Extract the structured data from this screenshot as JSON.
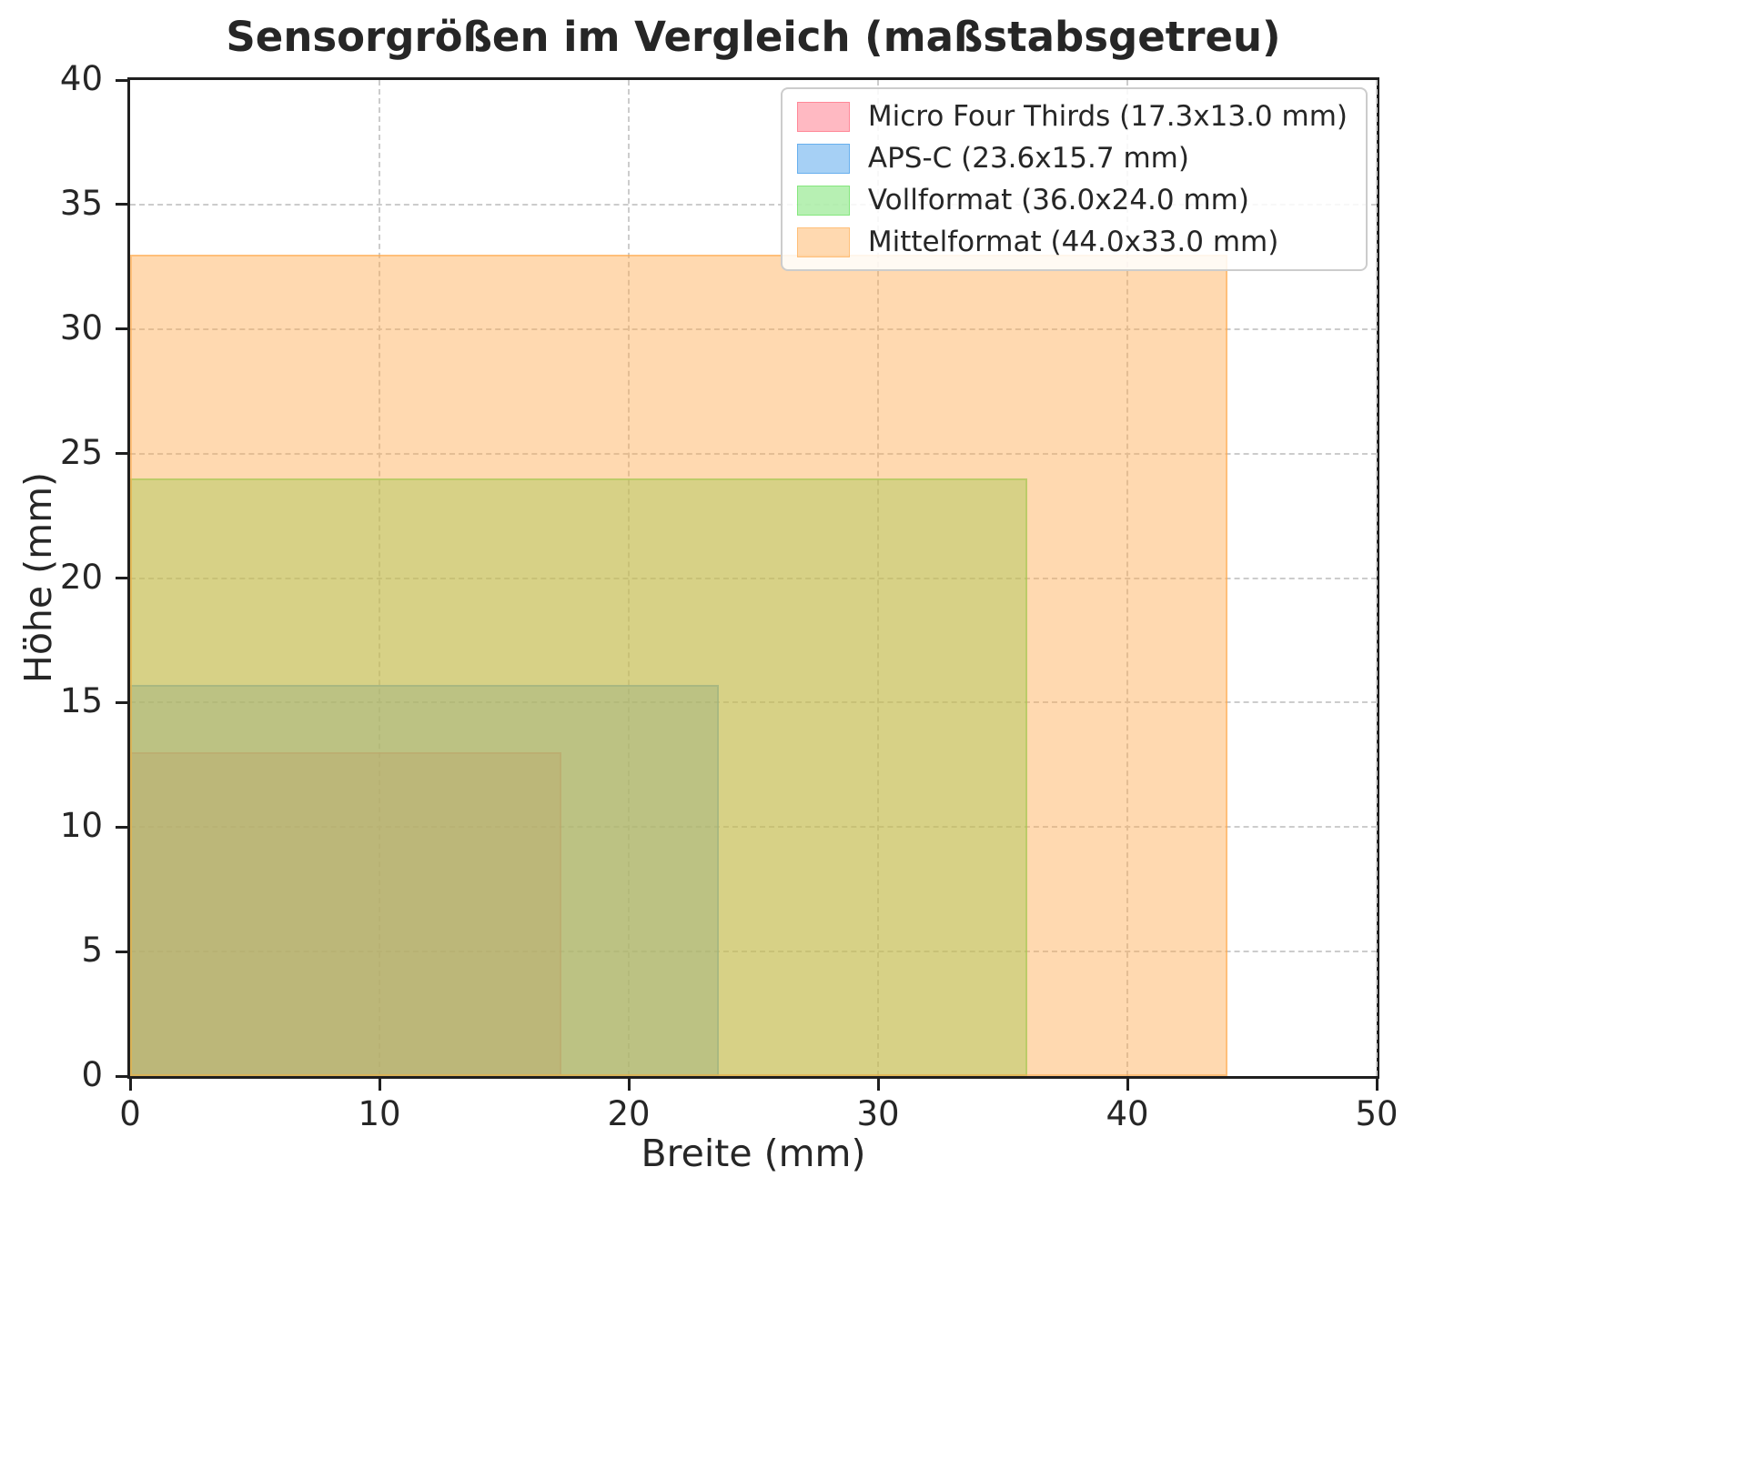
{
  "chart_data": {
    "type": "area",
    "subtype": "scaled-rectangles-from-origin",
    "title": "Sensorgrößen im Vergleich (maßstabsgetreu)",
    "xlabel": "Breite (mm)",
    "ylabel": "Höhe (mm)",
    "xlim": [
      0,
      50
    ],
    "ylim": [
      0,
      40
    ],
    "xticks": [
      0,
      10,
      20,
      30,
      40,
      50
    ],
    "yticks": [
      0,
      5,
      10,
      15,
      20,
      25,
      30,
      35,
      40
    ],
    "grid": true,
    "grid_style": "dashed",
    "grid_color": "#cccccc",
    "axis_color": "#1f1f1f",
    "legend_position": "upper-right",
    "series": [
      {
        "name": "Micro Four Thirds (17.3x13.0 mm)",
        "width_mm": 17.3,
        "height_mm": 13.0,
        "color": "#ff6377",
        "alpha": 0.45
      },
      {
        "name": "APS-C (23.6x15.7 mm)",
        "width_mm": 23.6,
        "height_mm": 15.7,
        "color": "#3996e9",
        "alpha": 0.45
      },
      {
        "name": "Vollformat (36.0x24.0 mm)",
        "width_mm": 36.0,
        "height_mm": 24.0,
        "color": "#5fde56",
        "alpha": 0.45
      },
      {
        "name": "Mittelformat (44.0x33.0 mm)",
        "width_mm": 44.0,
        "height_mm": 33.0,
        "color": "#ffab4f",
        "alpha": 0.45
      }
    ]
  }
}
